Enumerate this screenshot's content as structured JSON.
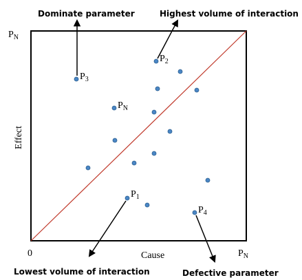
{
  "annotations": {
    "top_left": "Dominate parameter",
    "top_right": "Highest volume of interaction",
    "bottom_left": "Lowest volume of interaction",
    "bottom_right": "Defective parameter"
  },
  "axes": {
    "x_label": "Cause",
    "y_label": "Effect",
    "origin": "0",
    "y_max": {
      "base": "P",
      "sub": "N"
    },
    "x_max": {
      "base": "P",
      "sub": "N"
    }
  },
  "points": [
    {
      "base": "P",
      "sub": "2"
    },
    {
      "base": "P",
      "sub": "3"
    },
    {
      "base": "P",
      "sub": "N"
    },
    {
      "base": "P",
      "sub": "1"
    },
    {
      "base": "P",
      "sub": "4"
    }
  ]
}
